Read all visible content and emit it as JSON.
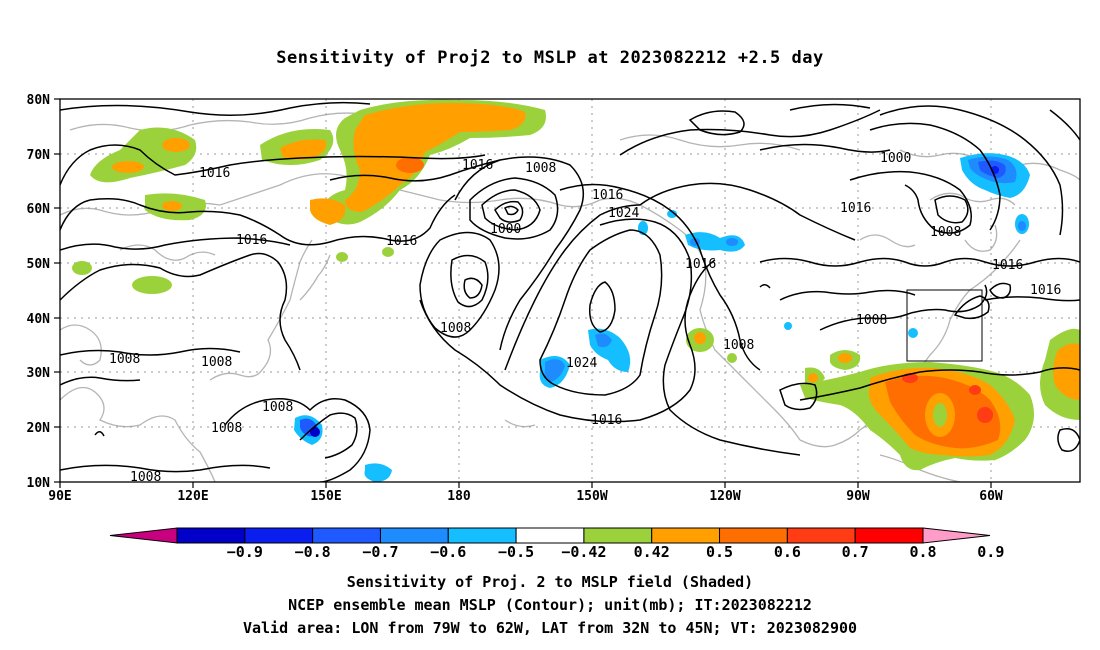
{
  "title": "Sensitivity of Proj2 to MSLP at 2023082212 +2.5 day",
  "map": {
    "lat_labels": [
      "80N",
      "70N",
      "60N",
      "50N",
      "40N",
      "30N",
      "20N",
      "10N"
    ],
    "lon_labels": [
      "90E",
      "120E",
      "150E",
      "180",
      "150W",
      "120W",
      "90W",
      "60W"
    ],
    "contour_labels": [
      {
        "text": "1016",
        "id": "c1"
      },
      {
        "text": "1016",
        "id": "c2"
      },
      {
        "text": "1016",
        "id": "c3"
      },
      {
        "text": "1016",
        "id": "c4"
      },
      {
        "text": "1008",
        "id": "c5"
      },
      {
        "text": "1016",
        "id": "c6"
      },
      {
        "text": "1000",
        "id": "c7"
      },
      {
        "text": "1024",
        "id": "c8"
      },
      {
        "text": "1000",
        "id": "c9"
      },
      {
        "text": "1016",
        "id": "c10"
      },
      {
        "text": "1008",
        "id": "c11"
      },
      {
        "text": "1016",
        "id": "c12"
      },
      {
        "text": "1016",
        "id": "c13"
      },
      {
        "text": "1016",
        "id": "c14"
      },
      {
        "text": "1008",
        "id": "c15"
      },
      {
        "text": "1008",
        "id": "c16"
      },
      {
        "text": "1008",
        "id": "c17"
      },
      {
        "text": "1008",
        "id": "c18"
      },
      {
        "text": "1024",
        "id": "c19"
      },
      {
        "text": "1008",
        "id": "c20"
      },
      {
        "text": "1008",
        "id": "c21"
      },
      {
        "text": "1016",
        "id": "c22"
      },
      {
        "text": "1008",
        "id": "c23"
      },
      {
        "text": "1008",
        "id": "c24"
      }
    ]
  },
  "colorbar": {
    "labels": [
      "-0.9",
      "-0.8",
      "-0.7",
      "-0.6",
      "-0.5",
      "-0.42",
      "0.42",
      "0.5",
      "0.6",
      "0.7",
      "0.8",
      "0.9"
    ],
    "colors": [
      "#c8007f",
      "#0000c8",
      "#0a1ef0",
      "#1e5aff",
      "#1e8cff",
      "#14beff",
      "#ffffff",
      "#9bd23c",
      "#ffa000",
      "#ff6e00",
      "#ff3c14",
      "#ff0000",
      "#ff9cc8"
    ]
  },
  "captions": {
    "line1": "Sensitivity of Proj. 2 to MSLP field (Shaded)",
    "line2": "NCEP ensemble mean MSLP (Contour); unit(mb); IT:2023082212",
    "line3": "Valid area: LON from 79W to 62W, LAT from 32N to 45N; VT: 2023082900"
  }
}
